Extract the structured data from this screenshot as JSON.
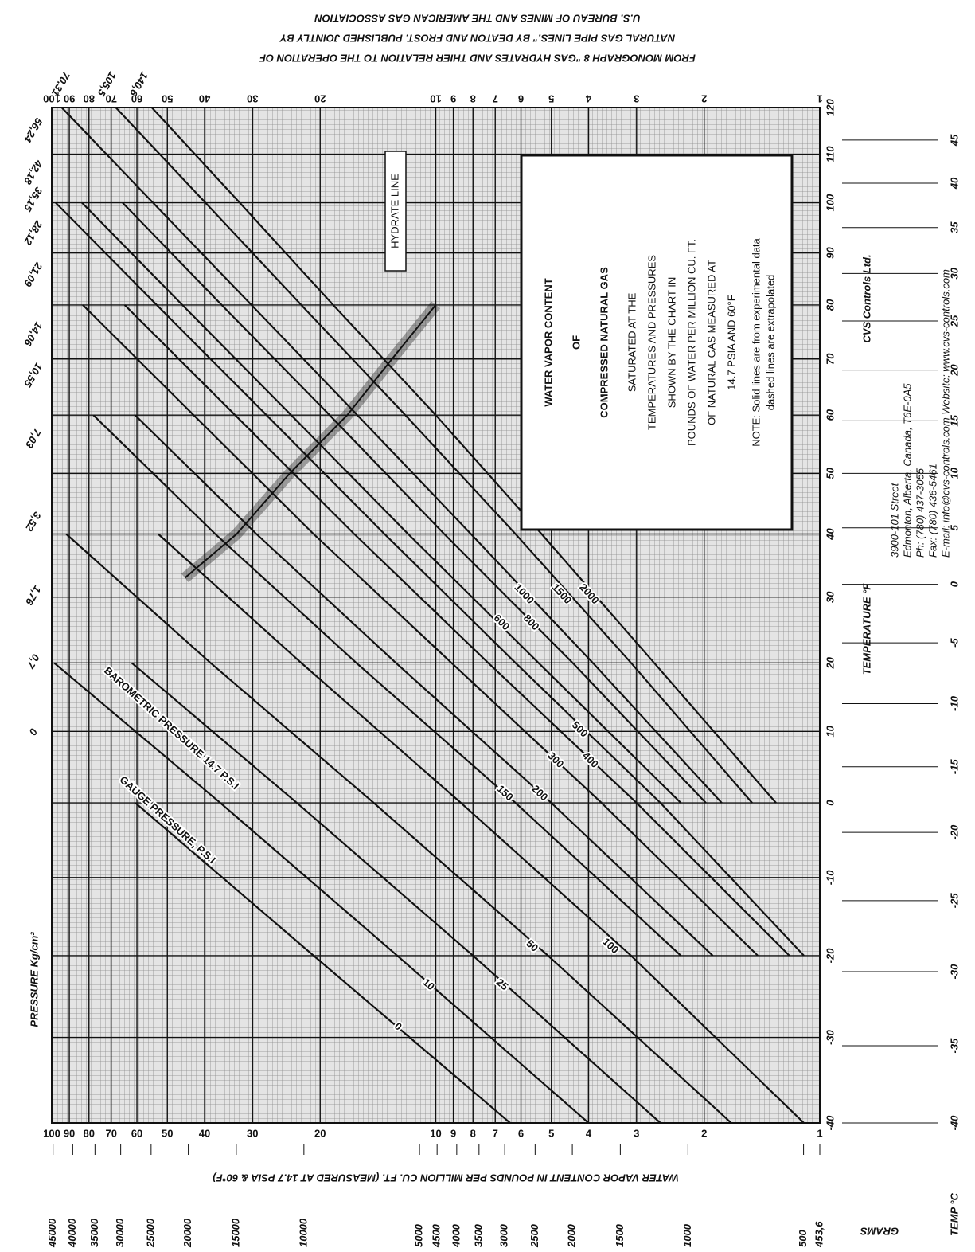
{
  "chart_data": {
    "type": "line",
    "source": [
      "FROM MONOGRAPH 8 \"GAS HYDRATES AND THIER RELATION TO THE OPERATION OF",
      "NATURAL GAS PIPE LINES.\" BY DEATON AND FROST. PUBLISHED JOINTLY BY",
      "U.S. BUREAU OF MINES AND THE AMERICAN GAS ASSOCIATION"
    ],
    "box": {
      "title": [
        "WATER VAPOR CONTENT",
        "OF",
        "COMPRESSED NATURAL GAS"
      ],
      "body": [
        "SATURATED AT THE",
        "TEMPERATURES AND PRESSURES",
        "SHOWN BY THE CHART IN",
        "POUNDS OF WATER PER MILLION CU. FT.",
        "OF NATURAL GAS MEASURED AT",
        "14.7 PSIA AND 60°F"
      ],
      "note": [
        "NOTE: Solid lines are from experimental data",
        "dashed lines are extrapolated"
      ]
    },
    "company": {
      "name": "CVS Controls Ltd.",
      "lines": [
        "3900-101 Street",
        "Edmonton, Alberta, Canada, T6E-0A5",
        "Ph: (780) 437-3055",
        "Fax: (780) 436-5461",
        "E-mail: info@cvs-controls.com   Website: www.cvs-controls.com"
      ]
    },
    "xlabel": "TEMPERATURE °F",
    "x2label": "TEMP °C",
    "ylabel": "WATER VAPOR CONTENT IN POUNDS PER MILLION CU. FT. (MEASURED AT 14.7 PSIA & 60°F)",
    "y2label": "GRAMS",
    "pressure_label": "PRESSURE Kg/cm²",
    "annotations": [
      "GAUGE PRESSURE, P.S.I",
      "BAROMETRIC PRESSURE 14.7 P.S.I"
    ],
    "xscale": "inverse-absolute",
    "yscale": "log",
    "xlim": [
      -40,
      120
    ],
    "xticks": [
      -40,
      -30,
      -20,
      -10,
      0,
      10,
      20,
      30,
      40,
      50,
      60,
      70,
      80,
      90,
      100,
      110,
      120
    ],
    "x2ticks": [
      -40,
      -35,
      -30,
      -25,
      -20,
      -15,
      -10,
      -5,
      0,
      5,
      10,
      15,
      20,
      25,
      30,
      35,
      40,
      45
    ],
    "ylim": [
      1,
      100
    ],
    "yticks": [
      1,
      2,
      3,
      4,
      5,
      6,
      7,
      8,
      9,
      10,
      20,
      30,
      40,
      50,
      60,
      70,
      80,
      90,
      100
    ],
    "y2lim": [
      453.6,
      45360
    ],
    "y2ticks": [
      45000,
      40000,
      35000,
      30000,
      25000,
      20000,
      15000,
      10000,
      5000,
      4500,
      4000,
      3500,
      3000,
      2500,
      2000,
      1500,
      1000,
      500,
      {
        "value": 453.6,
        "label": "453,6"
      }
    ],
    "grid": true,
    "color": "#111111",
    "x": [
      -40,
      -20,
      0,
      20,
      40,
      60,
      80,
      100,
      120
    ],
    "series": [
      {
        "name": "0",
        "kg_label": "0",
        "values": [
          6.4,
          20.8,
          60.6,
          null,
          null,
          null,
          null,
          null,
          null
        ]
      },
      {
        "name": "10",
        "kg_label": "0,7",
        "values": [
          4.0,
          12.6,
          36.4,
          98.6,
          null,
          null,
          null,
          null,
          null
        ]
      },
      {
        "name": "25",
        "kg_label": "1,76",
        "values": [
          2.6,
          8.0,
          23.0,
          61.9,
          null,
          null,
          null,
          null,
          null
        ]
      },
      {
        "name": "50",
        "kg_label": "3,52",
        "values": [
          1.7,
          5.1,
          14.5,
          38.6,
          91.7,
          null,
          null,
          null,
          null
        ]
      },
      {
        "name": "100",
        "kg_label": "7,03",
        "values": [
          1.1,
          3.1,
          8.6,
          22.4,
          52.8,
          null,
          null,
          null,
          null
        ]
      },
      {
        "name": "150",
        "kg_label": "10,55",
        "values": [
          null,
          2.3,
          6.2,
          16.1,
          37.5,
          77.9,
          null,
          null,
          null
        ]
      },
      {
        "name": "200",
        "kg_label": "14,06",
        "values": [
          null,
          1.9,
          5.0,
          12.7,
          29.3,
          60.7,
          null,
          null,
          null
        ]
      },
      {
        "name": "300",
        "kg_label": "21,09",
        "values": [
          null,
          1.45,
          3.7,
          9.1,
          20.8,
          42.7,
          83.0,
          null,
          null
        ]
      },
      {
        "name": "400",
        "kg_label": "28,12",
        "values": [
          null,
          1.2,
          3.0,
          7.3,
          16.3,
          33.3,
          64.6,
          null,
          null
        ]
      },
      {
        "name": "500",
        "kg_label": "35,15",
        "values": [
          null,
          1.1,
          2.6,
          6.2,
          13.6,
          27.6,
          53.3,
          97.7,
          null
        ]
      },
      {
        "name": "600",
        "kg_label": "42,18",
        "values": [
          null,
          null,
          2.3,
          5.4,
          11.8,
          23.8,
          45.7,
          83.4,
          null
        ]
      },
      {
        "name": "800",
        "kg_label": "56,24",
        "values": [
          null,
          null,
          1.98,
          4.4,
          9.5,
          18.9,
          36.1,
          65.4,
          null
        ]
      },
      {
        "name": "1000",
        "kg_label": "70,31",
        "values": [
          null,
          null,
          1.8,
          3.9,
          8.1,
          16.0,
          30.2,
          54.5,
          94.2
        ]
      },
      {
        "name": "1500",
        "kg_label": "105,5",
        "values": [
          null,
          null,
          1.5,
          3.1,
          6.2,
          12.0,
          22.4,
          39.8,
          68.1
        ]
      },
      {
        "name": "2000",
        "kg_label": "140,6",
        "values": [
          null,
          null,
          1.3,
          2.7,
          5.3,
          10.0,
          18.5,
          32.4,
          54.9
        ]
      }
    ],
    "hydrate": {
      "label": "HYDRATE LINE",
      "x": [
        33,
        40,
        50,
        60,
        70,
        80
      ],
      "values": [
        45,
        33,
        24,
        17,
        13,
        10
      ]
    }
  }
}
